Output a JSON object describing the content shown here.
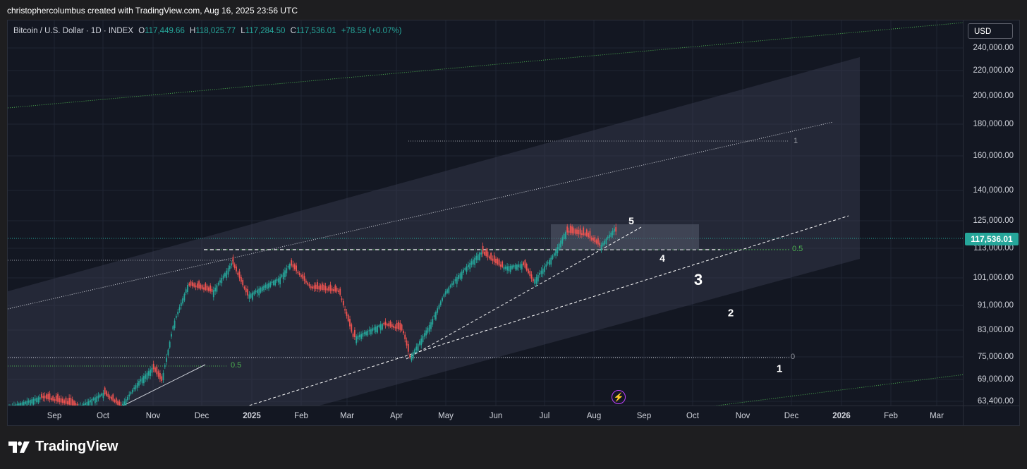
{
  "header": {
    "attribution": "christophercolumbus created with TradingView.com, Aug 16, 2025 23:56 UTC"
  },
  "legend": {
    "symbol": "Bitcoin / U.S. Dollar · 1D · INDEX",
    "open_label": "O",
    "open": "117,449.66",
    "high_label": "H",
    "high": "118,025.77",
    "low_label": "L",
    "low": "117,284.50",
    "close_label": "C",
    "close": "117,536.01",
    "change": "+78.59 (+0.07%)"
  },
  "price_axis": {
    "currency_button": "USD",
    "labels": [
      "240,000.00",
      "220,000.00",
      "200,000.00",
      "180,000.00",
      "160,000.00",
      "140,000.00",
      "125,000.00",
      "113,000.00",
      "101,000.00",
      "91,000.00",
      "83,000.00",
      "75,000.00",
      "69,000.00",
      "63,400.00"
    ],
    "last_price": "117,536.01"
  },
  "time_axis": {
    "labels": [
      "Sep",
      "Oct",
      "Nov",
      "Dec",
      "2025",
      "Feb",
      "Mar",
      "Apr",
      "May",
      "Jun",
      "Jul",
      "Aug",
      "Sep",
      "Oct",
      "Nov",
      "Dec",
      "2026",
      "Feb",
      "Mar"
    ]
  },
  "annotations": {
    "waves": [
      "5",
      "4",
      "3",
      "2",
      "1"
    ],
    "fib_1": "1",
    "fib_05_upper": "0.5",
    "fib_0": "0",
    "fib_05_lower": "0.5"
  },
  "icons": {
    "flash": "lightning-icon",
    "logo": "tradingview-logo-icon"
  },
  "colors": {
    "up": "#26a69a",
    "down": "#ef5350",
    "fib_green": "#4caf50",
    "background": "#131722"
  },
  "brand": {
    "name": "TradingView"
  }
}
